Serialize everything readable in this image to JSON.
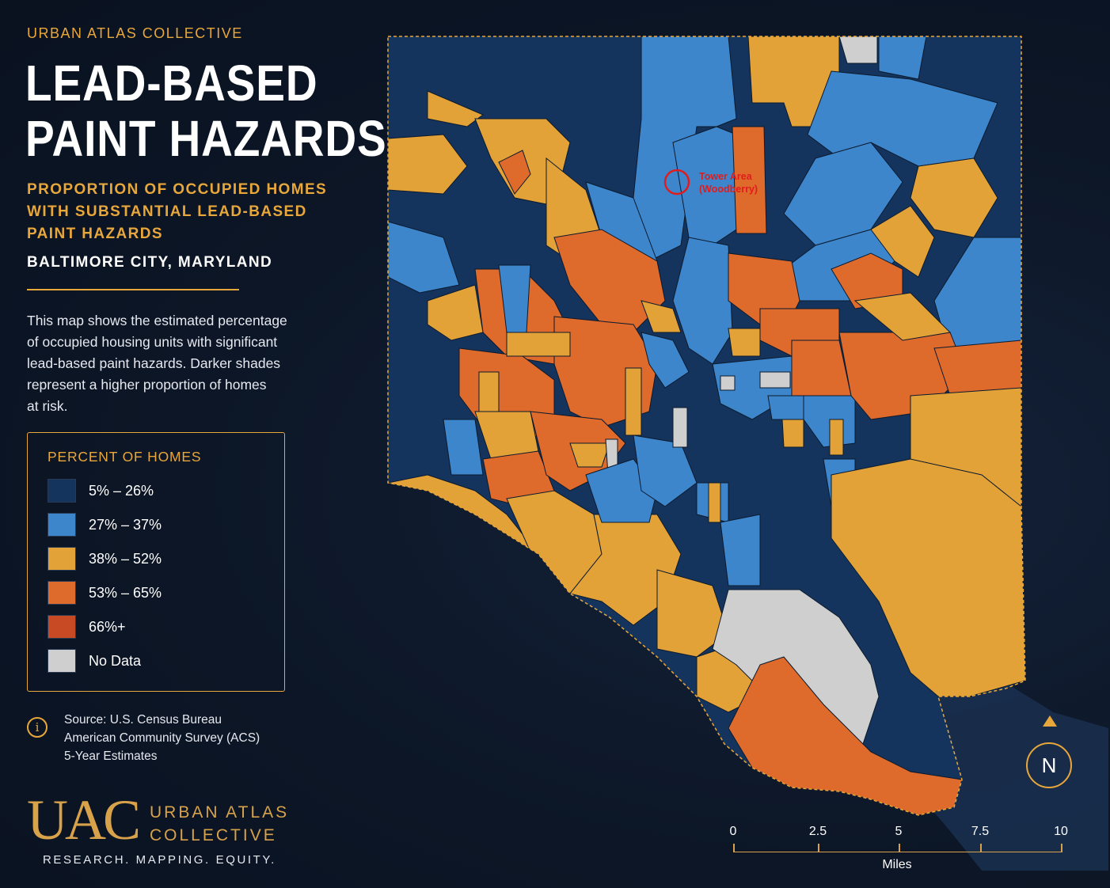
{
  "header": {
    "brand": "URBAN ATLAS COLLECTIVE",
    "title_line1": "LEAD-BASED",
    "title_line2": "PAINT HAZARDS",
    "subtitle_line1": "PROPORTION OF OCCUPIED HOMES",
    "subtitle_line2": "WITH SUBSTANTIAL LEAD-BASED",
    "subtitle_line3": "PAINT HAZARDS",
    "place": "BALTIMORE CITY, MARYLAND"
  },
  "description": {
    "line1": "This map shows the estimated percentage",
    "line2": "of occupied housing units with significant",
    "line3": "lead-based paint hazards. Darker shades",
    "line4": "represent a higher proportion of homes",
    "line5": "at risk."
  },
  "legend": {
    "title": "PERCENT OF HOMES",
    "items": [
      {
        "label": "5% – 26%",
        "color": "#15345d"
      },
      {
        "label": "27% – 37%",
        "color": "#3d86cc"
      },
      {
        "label": "38% – 52%",
        "color": "#e3a238"
      },
      {
        "label": "53% – 65%",
        "color": "#de6a2b"
      },
      {
        "label": "66%+",
        "color": "#c84a24"
      },
      {
        "label": "No Data",
        "color": "#cfcfcf"
      }
    ]
  },
  "source": {
    "icon": "info-icon",
    "line1": "Source: U.S. Census Bureau",
    "line2": "American Community Survey (ACS)",
    "line3": "5-Year Estimates"
  },
  "logo": {
    "mark": "UAC",
    "name_line1": "URBAN ATLAS",
    "name_line2": "COLLECTIVE",
    "tagline": "RESEARCH. MAPPING. EQUITY."
  },
  "annotation": {
    "line1": "Tower Area",
    "line2": "(Woodberry)",
    "color": "#e01c1c"
  },
  "compass": {
    "label": "N",
    "icon": "north-arrow-icon"
  },
  "scale_bar": {
    "ticks": [
      "0",
      "2.5",
      "5",
      "7.5",
      "10"
    ],
    "unit": "Miles"
  },
  "colors": {
    "background": "#0c1626",
    "accent": "#e8a73a"
  }
}
